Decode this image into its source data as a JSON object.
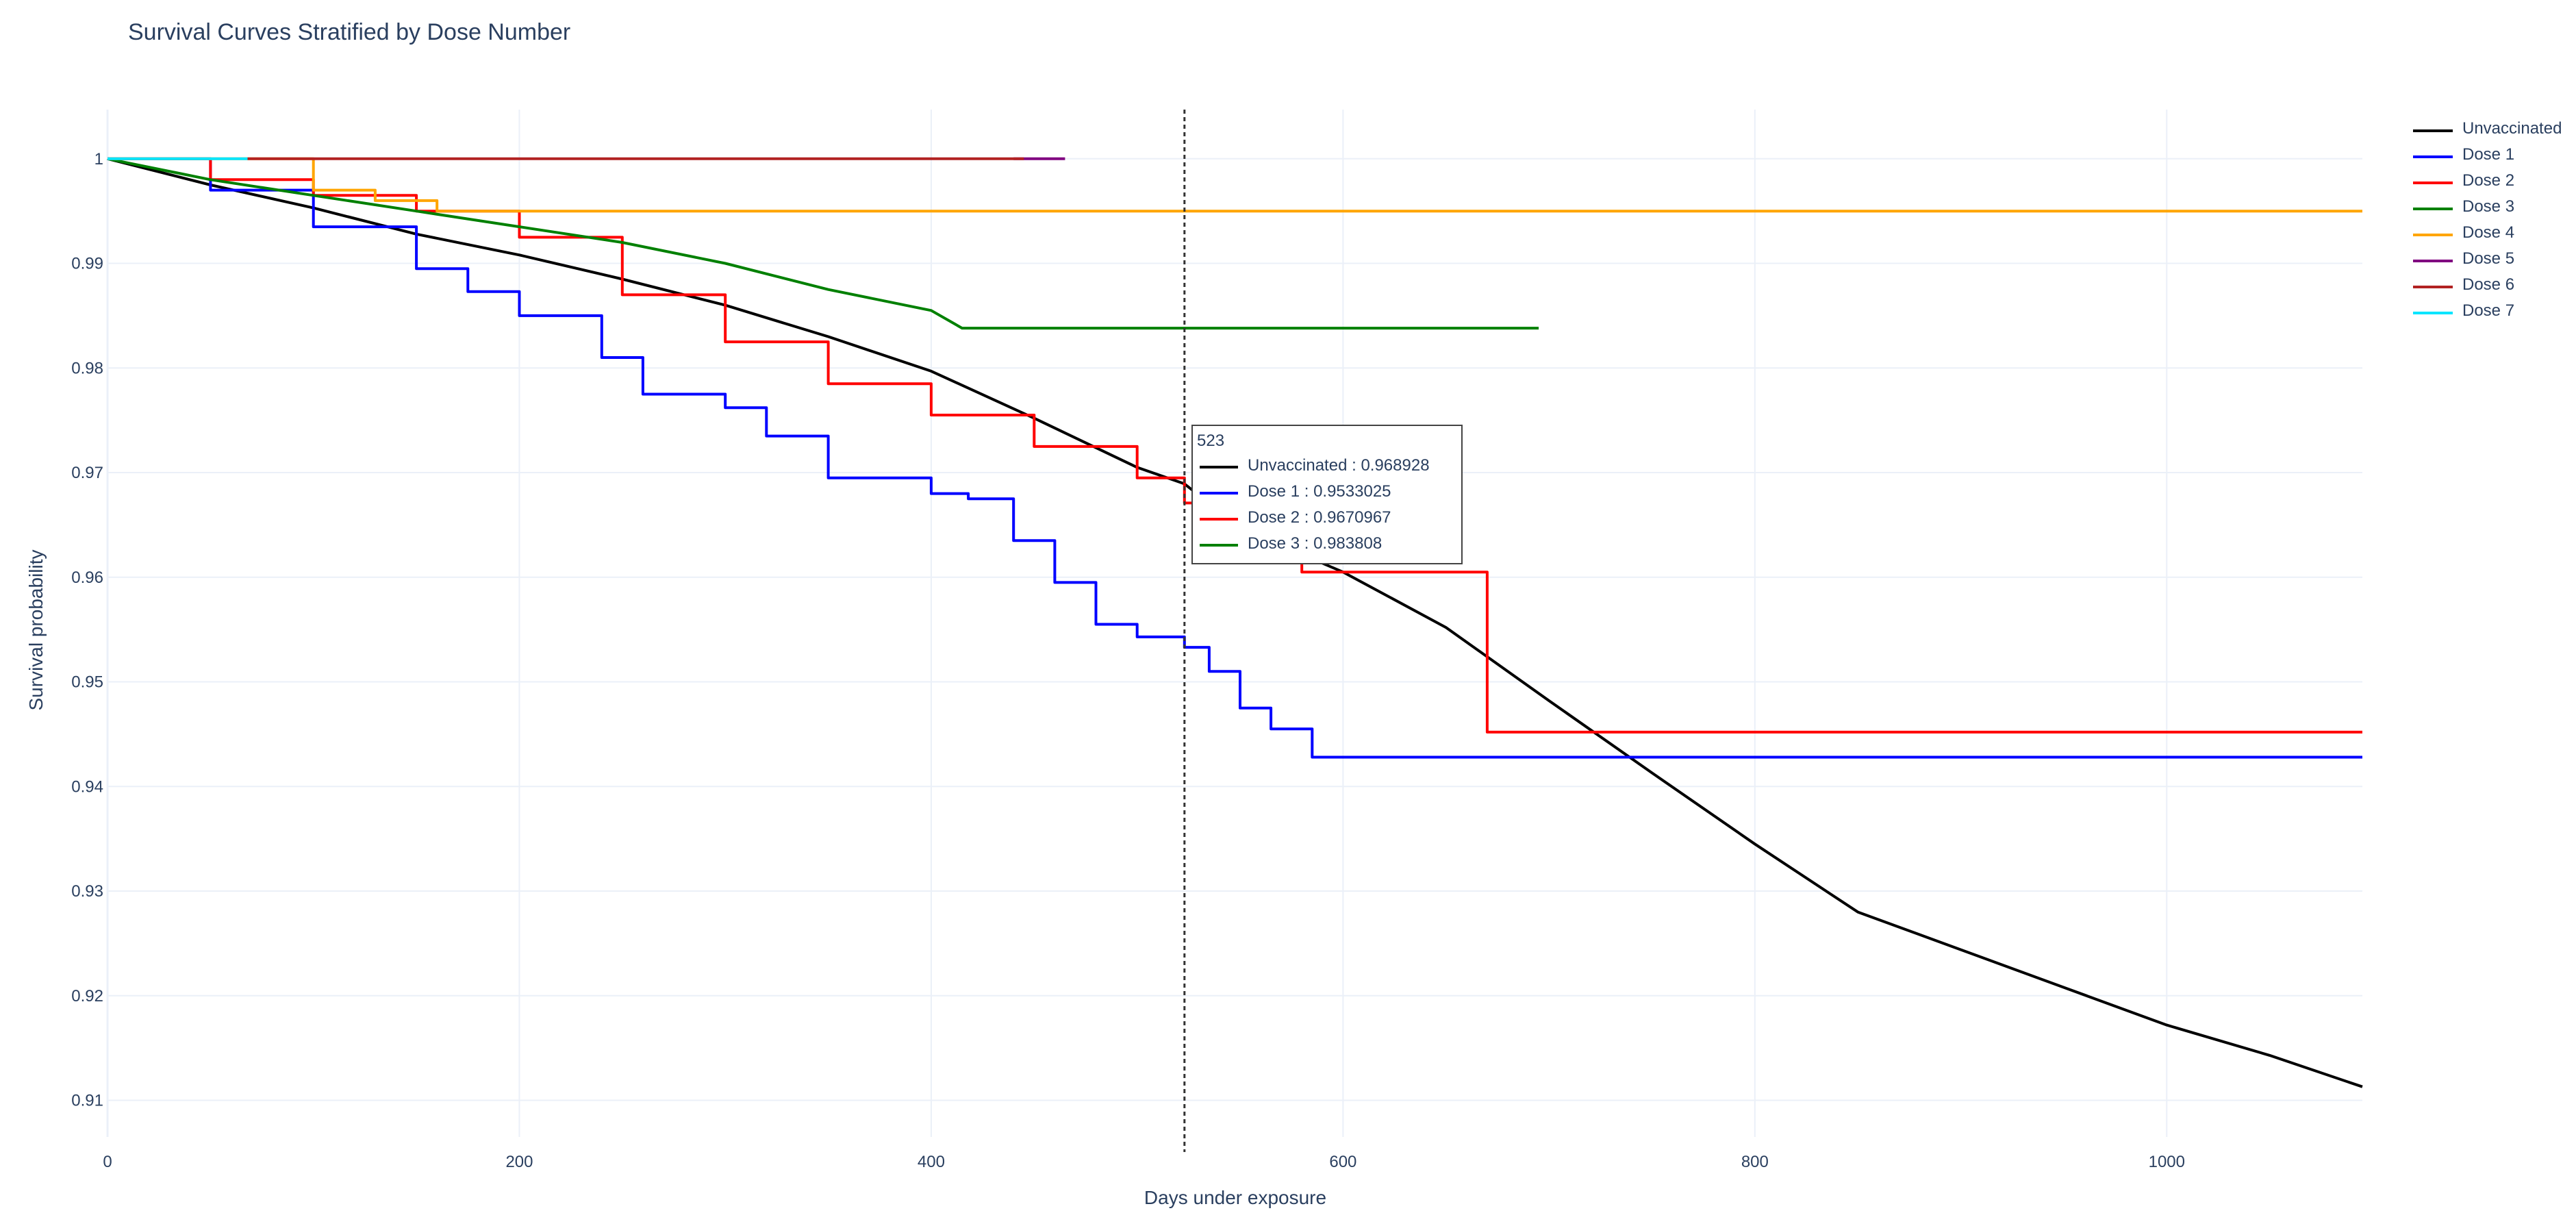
{
  "title": "Survival Curves Stratified by Dose Number",
  "chart_data": {
    "type": "line",
    "title": "Survival Curves Stratified by Dose Number",
    "xlabel": "Days under exposure",
    "ylabel": "Survival probability",
    "xlim": [
      0,
      1095
    ],
    "ylim": [
      0.9065,
      1.0047
    ],
    "x_ticks": [
      0,
      200,
      400,
      600,
      800,
      1000
    ],
    "y_ticks": [
      0.91,
      0.92,
      0.93,
      0.94,
      0.95,
      0.96,
      0.97,
      0.98,
      0.99,
      1
    ],
    "y_tick_labels": [
      "0.91",
      "0.92",
      "0.93",
      "0.94",
      "0.95",
      "0.96",
      "0.97",
      "0.98",
      "0.99",
      "1"
    ],
    "grid": true,
    "legend_position": "top-right, outside plot",
    "series": [
      {
        "name": "Unvaccinated",
        "color": "#000000",
        "step": false,
        "x": [
          0,
          50,
          100,
          150,
          200,
          250,
          300,
          350,
          400,
          450,
          500,
          523,
          550,
          600,
          650,
          700,
          750,
          800,
          850,
          900,
          950,
          1000,
          1050,
          1095
        ],
        "y": [
          1.0,
          0.9975,
          0.9953,
          0.9928,
          0.9908,
          0.9885,
          0.986,
          0.983,
          0.9797,
          0.9752,
          0.9705,
          0.968928,
          0.9647,
          0.9605,
          0.9552,
          0.9482,
          0.9413,
          0.9345,
          0.928,
          0.9244,
          0.9208,
          0.9172,
          0.9143,
          0.9113
        ]
      },
      {
        "name": "Dose 1",
        "color": "#0000ff",
        "step": true,
        "x": [
          0,
          50,
          100,
          150,
          175,
          200,
          240,
          260,
          300,
          320,
          350,
          400,
          418,
          440,
          460,
          480,
          500,
          523,
          535,
          550,
          565,
          585,
          1095
        ],
        "y": [
          1.0,
          0.997,
          0.9935,
          0.9895,
          0.9873,
          0.985,
          0.981,
          0.9775,
          0.9762,
          0.9735,
          0.9695,
          0.968,
          0.9675,
          0.9635,
          0.9595,
          0.9555,
          0.9543,
          0.9533025,
          0.951,
          0.9475,
          0.9455,
          0.9428,
          0.9428
        ]
      },
      {
        "name": "Dose 2",
        "color": "#ff0000",
        "step": true,
        "x": [
          0,
          50,
          100,
          150,
          200,
          250,
          300,
          350,
          400,
          450,
          500,
          523,
          560,
          580,
          600,
          670,
          1095
        ],
        "y": [
          1.0,
          0.998,
          0.9965,
          0.995,
          0.9925,
          0.987,
          0.9825,
          0.9785,
          0.9755,
          0.9725,
          0.9695,
          0.9670967,
          0.9645,
          0.9605,
          0.9605,
          0.9452,
          0.9452
        ]
      },
      {
        "name": "Dose 3",
        "color": "#008000",
        "step": false,
        "x": [
          0,
          50,
          100,
          150,
          200,
          250,
          300,
          350,
          400,
          415,
          523,
          695
        ],
        "y": [
          1.0,
          0.998,
          0.9965,
          0.995,
          0.9935,
          0.992,
          0.99,
          0.9875,
          0.9855,
          0.983808,
          0.983808,
          0.983808
        ]
      },
      {
        "name": "Dose 4",
        "color": "#ffa500",
        "step": true,
        "x": [
          0,
          100,
          130,
          160,
          1095
        ],
        "y": [
          1.0,
          0.997,
          0.996,
          0.995,
          0.995
        ]
      },
      {
        "name": "Dose 5",
        "color": "#800080",
        "step": false,
        "x": [
          440,
          465
        ],
        "y": [
          1.0,
          1.0
        ]
      },
      {
        "name": "Dose 6",
        "color": "#b22222",
        "step": false,
        "x": [
          68,
          445
        ],
        "y": [
          1.0,
          1.0
        ]
      },
      {
        "name": "Dose 7",
        "color": "#00e5ff",
        "step": false,
        "x": [
          0,
          68
        ],
        "y": [
          1.0,
          1.0
        ]
      }
    ],
    "hover": {
      "x": 523,
      "title": "523",
      "entries": [
        {
          "name": "Unvaccinated",
          "value": "0.968928",
          "color": "#000000"
        },
        {
          "name": "Dose 1",
          "value": "0.9533025",
          "color": "#0000ff"
        },
        {
          "name": "Dose 2",
          "value": "0.9670967",
          "color": "#ff0000"
        },
        {
          "name": "Dose 3",
          "value": "0.983808",
          "color": "#008000"
        }
      ]
    }
  }
}
